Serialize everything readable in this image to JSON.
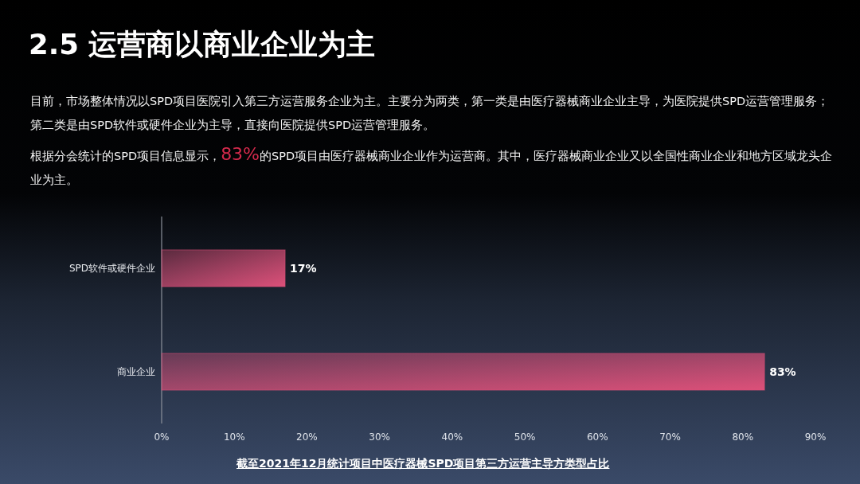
{
  "chart_data": {
    "type": "bar",
    "orientation": "horizontal",
    "title": "2.5 运营商以商业企业为主",
    "subtitle": "目前，市场整体情况以SPD项目医院引入第三方运营服务企业为主。主要分为两类，第一类是由医疗器械商业企业主导，为医院提供SPD运营管理服务；第二类是由SPD软件或硬件企业为主导，直接向医院提供SPD运营管理服务。",
    "annotations": [
      "根据分会统计的SPD项目信息显示，83%的SPD项目由医疗器械商业企业作为运营商。其中，医疗器械商业企业又以全国性商业企业和地方区域龙头企业为主。"
    ],
    "xlabel": "截至2021年12月统计项目中医疗器械SPD项目第三方运营主导方类型占比",
    "categories": [
      "SPD软件或硬件企业",
      "商业企业"
    ],
    "values": [
      17,
      83
    ],
    "value_labels": [
      "17%",
      "83%"
    ],
    "color": "#dc5079",
    "xlim": [
      0,
      90
    ],
    "xticks": [
      {
        "value": 0,
        "label": "0%"
      },
      {
        "value": 10,
        "label": "10%"
      },
      {
        "value": 20,
        "label": "20%"
      },
      {
        "value": 30,
        "label": "30%"
      },
      {
        "value": 40,
        "label": "40%"
      },
      {
        "value": 50,
        "label": "50%"
      },
      {
        "value": 60,
        "label": "60%"
      },
      {
        "value": 70,
        "label": "70%"
      },
      {
        "value": 80,
        "label": "80%"
      },
      {
        "value": 90,
        "label": "90%"
      }
    ]
  }
}
